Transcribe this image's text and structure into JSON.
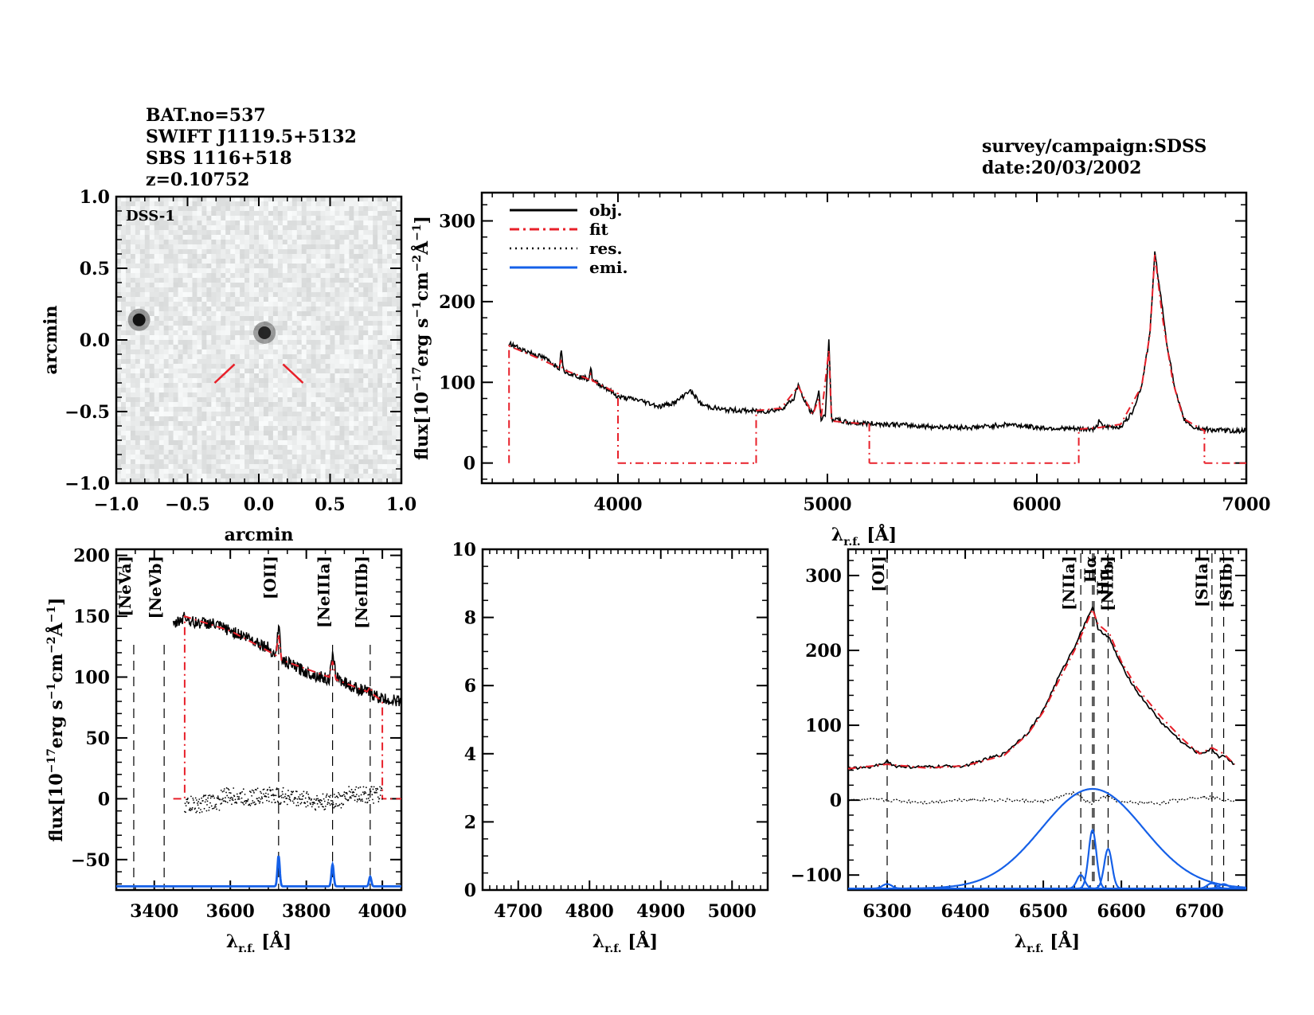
{
  "header": {
    "bat_no": "BAT.no=537",
    "swift_name": "SWIFT J1119.5+5132",
    "alt_name": "SBS 1116+518",
    "redshift": "z=0.10752",
    "survey": "survey/campaign:SDSS",
    "date": "date:20/03/2002"
  },
  "colors": {
    "obj": "#000000",
    "fit": "#e8202a",
    "res": "#000000",
    "emi": "#1560e8"
  },
  "chart_data": [
    {
      "id": "dss-image",
      "type": "heatmap",
      "title": "DSS-1",
      "xlabel": "arcmin",
      "ylabel": "arcmin",
      "xlim": [
        -1.0,
        1.0
      ],
      "ylim": [
        -1.0,
        1.0
      ],
      "xticks": [
        "-1.0",
        "-0.5",
        "0.0",
        "0.5",
        "1.0"
      ],
      "yticks": [
        "-1.0",
        "-0.5",
        "0.0",
        "0.5",
        "1.0"
      ],
      "sources": [
        {
          "x": -0.84,
          "y": 0.14,
          "brightness": 1.0
        },
        {
          "x": 0.04,
          "y": 0.05,
          "brightness": 0.85
        }
      ],
      "marker_lines": [
        {
          "x1": -0.31,
          "y1": -0.3,
          "x2": -0.17,
          "y2": -0.17
        },
        {
          "x1": 0.17,
          "y1": -0.17,
          "x2": 0.31,
          "y2": -0.3
        }
      ]
    },
    {
      "id": "full-spectrum",
      "type": "line",
      "xlabel": "λ_r.f. [Å]",
      "ylabel": "flux[10^-17 erg s^-1 cm^-2 Å^-1]",
      "xlim": [
        3350,
        7000
      ],
      "ylim": [
        -25,
        335
      ],
      "xticks": [
        "4000",
        "5000",
        "6000",
        "7000"
      ],
      "yticks": [
        "0",
        "100",
        "200",
        "300"
      ],
      "legend": {
        "position": "top-left",
        "entries": [
          "obj.",
          "fit",
          "res.",
          "emi."
        ]
      },
      "series": [
        {
          "name": "obj.",
          "x": [
            3480,
            3550,
            3650,
            3720,
            3730,
            3740,
            3800,
            3860,
            3870,
            3880,
            3950,
            4000,
            4100,
            4200,
            4280,
            4340,
            4360,
            4400,
            4500,
            4600,
            4700,
            4780,
            4840,
            4861,
            4880,
            4930,
            4959,
            4970,
            4990,
            5007,
            5020,
            5100,
            5300,
            5500,
            5700,
            5870,
            6000,
            6200,
            6280,
            6300,
            6320,
            6400,
            6450,
            6500,
            6540,
            6563,
            6580,
            6620,
            6660,
            6700,
            6750,
            6800,
            6900,
            7000
          ],
          "y": [
            148,
            140,
            130,
            118,
            142,
            115,
            108,
            104,
            118,
            102,
            92,
            82,
            78,
            70,
            76,
            90,
            85,
            72,
            66,
            65,
            64,
            67,
            80,
            98,
            82,
            60,
            88,
            55,
            60,
            152,
            55,
            50,
            48,
            45,
            44,
            48,
            44,
            42,
            42,
            54,
            44,
            45,
            60,
            95,
            160,
            260,
            230,
            150,
            90,
            55,
            44,
            42,
            40,
            40
          ]
        },
        {
          "name": "fit",
          "segments": [
            {
              "x": [
                3480,
                3480,
                3600,
                3720,
                3727,
                3735,
                3860,
                3869,
                3878,
                4000,
                4000
              ],
              "y": [
                0,
                145,
                132,
                118,
                128,
                116,
                104,
                110,
                102,
                86,
                0
              ]
            },
            {
              "x": [
                4000,
                4660
              ],
              "y": [
                0,
                0
              ]
            },
            {
              "x": [
                4660,
                4660,
                4780,
                4861,
                4930,
                4959,
                4970,
                5007,
                5020,
                5200,
                5200
              ],
              "y": [
                0,
                65,
                68,
                95,
                60,
                80,
                56,
                140,
                52,
                48,
                0
              ]
            },
            {
              "x": [
                5200,
                6200
              ],
              "y": [
                0,
                0
              ]
            },
            {
              "x": [
                6200,
                6200,
                6300,
                6400,
                6500,
                6540,
                6563,
                6600,
                6650,
                6700,
                6800,
                6800
              ],
              "y": [
                0,
                42,
                44,
                48,
                95,
                160,
                258,
                180,
                100,
                55,
                40,
                0
              ]
            },
            {
              "x": [
                6800,
                7000
              ],
              "y": [
                0,
                0
              ]
            }
          ]
        }
      ]
    },
    {
      "id": "zoom-oii-neiii",
      "type": "line",
      "xlabel": "λ_r.f. [Å]",
      "ylabel": "flux[10^-17 erg s^-1 cm^-2 Å^-1]",
      "xlim": [
        3300,
        4050
      ],
      "ylim": [
        -75,
        205
      ],
      "xticks": [
        "3400",
        "3600",
        "3800",
        "4000"
      ],
      "yticks": [
        "-50",
        "0",
        "50",
        "100",
        "150",
        "200"
      ],
      "line_markers": [
        {
          "label": "[NeVa]",
          "x": 3346,
          "color": "#e8202a"
        },
        {
          "label": "[NeVb]",
          "x": 3426,
          "color": "#e8202a"
        },
        {
          "label": "[OII]",
          "x": 3727,
          "color": "#000000"
        },
        {
          "label": "[NeIIIa]",
          "x": 3869,
          "color": "#e8202a"
        },
        {
          "label": "[NeIIIb]",
          "x": 3968,
          "color": "#e8202a"
        }
      ],
      "series": [
        {
          "name": "obj.",
          "x": [
            3450,
            3480,
            3500,
            3550,
            3600,
            3650,
            3700,
            3720,
            3727,
            3735,
            3760,
            3800,
            3860,
            3869,
            3880,
            3920,
            3960,
            4000,
            4050
          ],
          "y": [
            142,
            150,
            145,
            144,
            138,
            132,
            124,
            118,
            145,
            114,
            110,
            104,
            98,
            116,
            100,
            92,
            88,
            82,
            80
          ]
        },
        {
          "name": "fit",
          "x": [
            3450,
            3480,
            3480,
            3600,
            3720,
            3727,
            3735,
            3860,
            3869,
            3878,
            3960,
            3968,
            3975,
            4000,
            4000,
            4050
          ],
          "y": [
            0,
            0,
            150,
            138,
            118,
            135,
            114,
            100,
            113,
            98,
            88,
            92,
            86,
            80,
            0,
            0
          ]
        },
        {
          "name": "res.",
          "x": [
            3480,
            3520,
            3560,
            3600,
            3650,
            3700,
            3750,
            3800,
            3850,
            3900,
            3950,
            4000
          ],
          "y": [
            -5,
            -3,
            2,
            1,
            3,
            2,
            0,
            -3,
            -1,
            4,
            3,
            1
          ]
        },
        {
          "name": "emi.",
          "baseline": -72,
          "lines": [
            {
              "x": 3727,
              "peak": -47,
              "sigma": 3
            },
            {
              "x": 3869,
              "peak": -54,
              "sigma": 3
            },
            {
              "x": 3968,
              "peak": -64,
              "sigma": 3
            }
          ]
        }
      ]
    },
    {
      "id": "zoom-hbeta-oiii",
      "type": "line",
      "xlabel": "λ_r.f. [Å]",
      "ylabel": "",
      "xlim": [
        4650,
        5050
      ],
      "ylim": [
        0,
        10
      ],
      "xticks": [
        "4700",
        "4800",
        "4900",
        "5000"
      ],
      "yticks": [
        "0",
        "2",
        "4",
        "6",
        "8",
        "10"
      ],
      "series": []
    },
    {
      "id": "zoom-halpha",
      "type": "line",
      "xlabel": "λ_r.f. [Å]",
      "ylabel": "",
      "xlim": [
        6250,
        6760
      ],
      "ylim": [
        -120,
        335
      ],
      "xticks": [
        "6300",
        "6400",
        "6500",
        "6600",
        "6700"
      ],
      "yticks": [
        "-100",
        "0",
        "100",
        "200",
        "300"
      ],
      "line_markers": [
        {
          "label": "[OI]",
          "x": 6300
        },
        {
          "label": "[NIIa]",
          "x": 6548
        },
        {
          "label": "Hα",
          "x": 6563
        },
        {
          "label": "Hα_br",
          "x": 6565
        },
        {
          "label": "[NIIb]",
          "x": 6583
        },
        {
          "label": "[SIIa]",
          "x": 6716
        },
        {
          "label": "[SIIb]",
          "x": 6731
        }
      ],
      "series": [
        {
          "name": "obj.",
          "x": [
            6250,
            6280,
            6300,
            6310,
            6350,
            6400,
            6450,
            6480,
            6500,
            6520,
            6540,
            6555,
            6563,
            6570,
            6585,
            6600,
            6620,
            6650,
            6680,
            6700,
            6716,
            6725,
            6731,
            6745
          ],
          "y": [
            42,
            44,
            52,
            45,
            44,
            46,
            62,
            90,
            120,
            165,
            205,
            240,
            258,
            230,
            215,
            180,
            145,
            105,
            75,
            62,
            68,
            58,
            60,
            48
          ]
        },
        {
          "name": "fit",
          "x": [
            6250,
            6300,
            6350,
            6400,
            6450,
            6480,
            6500,
            6520,
            6540,
            6555,
            6563,
            6570,
            6585,
            6600,
            6620,
            6650,
            6680,
            6700,
            6716,
            6731,
            6745
          ],
          "y": [
            42,
            48,
            43,
            46,
            60,
            88,
            118,
            160,
            200,
            235,
            255,
            235,
            222,
            185,
            150,
            112,
            80,
            62,
            70,
            62,
            48
          ]
        },
        {
          "name": "res.",
          "x": [
            6250,
            6300,
            6350,
            6400,
            6450,
            6500,
            6540,
            6560,
            6580,
            6600,
            6650,
            6700,
            6745
          ],
          "y": [
            0,
            0,
            -3,
            1,
            0,
            -2,
            10,
            -5,
            5,
            -3,
            -4,
            5,
            0
          ]
        },
        {
          "name": "emi.",
          "baseline": -118,
          "components": [
            {
              "center": 6300,
              "peak": -112,
              "sigma": 6
            },
            {
              "center": 6563,
              "peak": 15,
              "sigma": 65
            },
            {
              "center": 6548,
              "peak": -100,
              "sigma": 5
            },
            {
              "center": 6563,
              "peak": -40,
              "sigma": 5
            },
            {
              "center": 6583,
              "peak": -65,
              "sigma": 5
            },
            {
              "center": 6716,
              "peak": -111,
              "sigma": 6
            },
            {
              "center": 6731,
              "peak": -112,
              "sigma": 6
            }
          ]
        }
      ]
    }
  ]
}
